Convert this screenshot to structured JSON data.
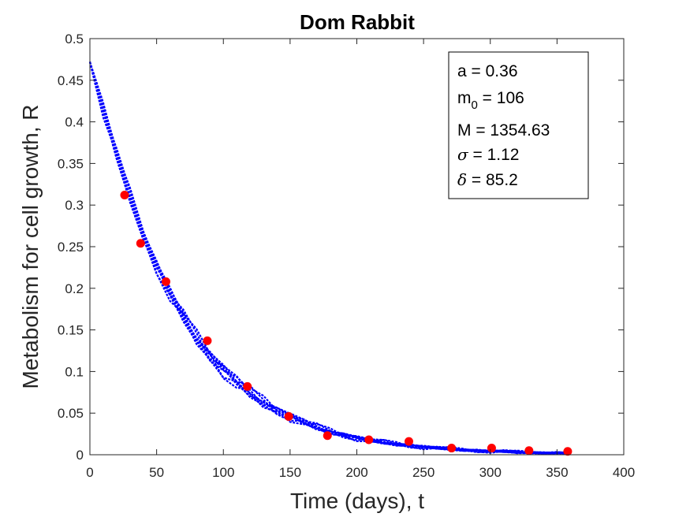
{
  "chart_data": {
    "type": "scatter",
    "title": "Dom Rabbit",
    "xlabel": "Time (days), t",
    "ylabel": "Metabolism for cell growth, R",
    "xlim": [
      0,
      400
    ],
    "ylim": [
      0,
      0.5
    ],
    "xticks": [
      "0",
      "50",
      "100",
      "150",
      "200",
      "250",
      "300",
      "350",
      "400"
    ],
    "yticks": [
      "0",
      "0.05",
      "0.1",
      "0.15",
      "0.2",
      "0.25",
      "0.3",
      "0.35",
      "0.4",
      "0.45",
      "0.5"
    ],
    "grid": false,
    "annotation_box": {
      "placement": "top-right",
      "lines": [
        {
          "symbol": "a",
          "value": " = 0.36"
        },
        {
          "symbol": "m",
          "subscript": "0",
          "value": " = 106"
        },
        {
          "symbol": "M",
          "value": " = 1354.63"
        },
        {
          "symbol": "σ",
          "value": " = 1.12"
        },
        {
          "symbol": "δ",
          "value": " = 85.2"
        }
      ]
    },
    "colors": {
      "data_points": "#ff0000",
      "model_curves": "#0000ff"
    },
    "series": [
      {
        "type": "scatter",
        "x": [
          26,
          38,
          57,
          88,
          118,
          149,
          178,
          209,
          239,
          271,
          301,
          329,
          358
        ],
        "y": [
          0.312,
          0.254,
          0.208,
          0.137,
          0.082,
          0.046,
          0.023,
          0.018,
          0.016,
          0.008,
          0.008,
          0.005,
          0.004
        ]
      },
      {
        "type": "line",
        "style": "dotted",
        "x": [
          0,
          10,
          20,
          30,
          40,
          50,
          60,
          70,
          80,
          90,
          100,
          110,
          120,
          130,
          140,
          150,
          160,
          170,
          180,
          190,
          200,
          210,
          220,
          230,
          240,
          250,
          260,
          270,
          280,
          290,
          300,
          310,
          320,
          330,
          340,
          350,
          360
        ],
        "y": [
          0.472,
          0.415,
          0.36,
          0.31,
          0.265,
          0.227,
          0.193,
          0.165,
          0.14,
          0.12,
          0.102,
          0.087,
          0.074,
          0.063,
          0.054,
          0.046,
          0.039,
          0.033,
          0.028,
          0.024,
          0.02,
          0.017,
          0.015,
          0.013,
          0.011,
          0.009,
          0.008,
          0.007,
          0.006,
          0.005,
          0.004,
          0.004,
          0.003,
          0.003,
          0.002,
          0.002,
          0.002
        ]
      }
    ]
  }
}
